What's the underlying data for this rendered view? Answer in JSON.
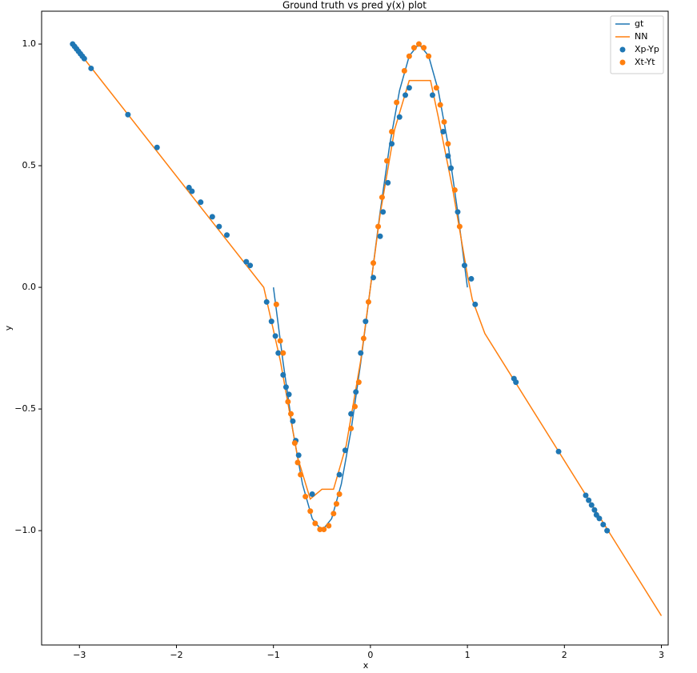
{
  "chart_data": {
    "type": "line",
    "title": "Ground truth vs pred y(x) plot",
    "x_label": "x",
    "y_label": "y",
    "xlim": [
      -3.39,
      3.07
    ],
    "ylim": [
      -1.47,
      1.135
    ],
    "xticks": [
      {
        "value": -3,
        "label": "−3"
      },
      {
        "value": -2,
        "label": "−2"
      },
      {
        "value": -1,
        "label": "−1"
      },
      0,
      1,
      2,
      3
    ],
    "yticks": [
      {
        "value": -1.0,
        "label": "−1.0"
      },
      {
        "value": -0.5,
        "label": "−0.5"
      },
      {
        "value": 0.0,
        "label": "0.0"
      },
      0.5,
      {
        "value": 1.0,
        "label": "1.0"
      }
    ],
    "legend": "upper right",
    "series": [
      {
        "name": "gt",
        "type": "line",
        "color": "#1f77b4",
        "x": [
          -1,
          -0.9,
          -0.8,
          -0.7,
          -0.6,
          -0.5,
          -0.4,
          -0.3,
          -0.2,
          -0.1,
          0,
          0.1,
          0.2,
          0.3,
          0.4,
          0.5,
          0.6,
          0.7,
          0.8,
          0.9,
          1
        ],
        "values": [
          0,
          -0.309,
          -0.588,
          -0.809,
          -0.951,
          -1,
          -0.951,
          -0.809,
          -0.588,
          -0.309,
          0,
          0.309,
          0.588,
          0.809,
          0.951,
          1,
          0.951,
          0.809,
          0.588,
          0.309,
          0
        ]
      },
      {
        "name": "NN",
        "type": "line",
        "color": "#ff7f0e",
        "x": [
          -3.07,
          -1.1,
          -0.93,
          -0.75,
          -0.62,
          -0.5,
          -0.38,
          -0.25,
          -0.1,
          0,
          0.1,
          0.25,
          0.4,
          0.62,
          0.7,
          0.85,
          1.0,
          1.05,
          1.18,
          3.0
        ],
        "values": [
          1.0,
          0.0,
          -0.3,
          -0.7,
          -0.87,
          -0.83,
          -0.83,
          -0.65,
          -0.3,
          0.0,
          0.3,
          0.65,
          0.85,
          0.85,
          0.7,
          0.4,
          0.05,
          -0.05,
          -0.19,
          -1.35
        ]
      },
      {
        "name": "Xp-Yp",
        "type": "scatter",
        "color": "#1f77b4",
        "x": [
          -3.07,
          -3.05,
          -3.03,
          -3.01,
          -2.99,
          -2.97,
          -2.95,
          -2.88,
          -2.5,
          -2.2,
          -1.87,
          -1.84,
          -1.75,
          -1.63,
          -1.56,
          -1.48,
          -1.28,
          -1.24,
          -1.07,
          -1.02,
          -0.98,
          -0.95,
          -0.9,
          -0.87,
          -0.84,
          -0.8,
          -0.77,
          -0.74,
          -0.6,
          -0.32,
          -0.26,
          -0.2,
          -0.15,
          -0.1,
          -0.05,
          0.03,
          0.1,
          0.13,
          0.18,
          0.22,
          0.3,
          0.36,
          0.4,
          0.64,
          0.75,
          0.8,
          0.83,
          0.9,
          0.97,
          1.04,
          1.08,
          1.48,
          1.5,
          1.94,
          2.22,
          2.25,
          2.28,
          2.31,
          2.33,
          2.36,
          2.4,
          2.44
        ],
        "values": [
          1.0,
          0.99,
          0.98,
          0.97,
          0.96,
          0.95,
          0.94,
          0.9,
          0.71,
          0.575,
          0.41,
          0.395,
          0.35,
          0.29,
          0.25,
          0.215,
          0.105,
          0.09,
          -0.06,
          -0.14,
          -0.2,
          -0.27,
          -0.36,
          -0.41,
          -0.44,
          -0.55,
          -0.63,
          -0.69,
          -0.85,
          -0.77,
          -0.67,
          -0.52,
          -0.43,
          -0.27,
          -0.14,
          0.04,
          0.21,
          0.31,
          0.43,
          0.59,
          0.7,
          0.79,
          0.82,
          0.79,
          0.64,
          0.54,
          0.49,
          0.31,
          0.09,
          0.035,
          -0.07,
          -0.375,
          -0.39,
          -0.675,
          -0.855,
          -0.875,
          -0.895,
          -0.915,
          -0.935,
          -0.95,
          -0.975,
          -1.0
        ]
      },
      {
        "name": "Xt-Yt",
        "type": "scatter",
        "color": "#ff7f0e",
        "x": [
          -0.97,
          -0.93,
          -0.9,
          -0.85,
          -0.82,
          -0.78,
          -0.75,
          -0.72,
          -0.67,
          -0.62,
          -0.57,
          -0.52,
          -0.48,
          -0.43,
          -0.38,
          -0.35,
          -0.32,
          -0.2,
          -0.16,
          -0.12,
          -0.07,
          -0.02,
          0.03,
          0.08,
          0.12,
          0.17,
          0.22,
          0.27,
          0.35,
          0.4,
          0.45,
          0.5,
          0.55,
          0.6,
          0.68,
          0.72,
          0.76,
          0.8,
          0.87,
          0.92
        ],
        "values": [
          -0.07,
          -0.22,
          -0.27,
          -0.47,
          -0.52,
          -0.64,
          -0.72,
          -0.77,
          -0.86,
          -0.92,
          -0.97,
          -0.995,
          -0.995,
          -0.98,
          -0.93,
          -0.89,
          -0.85,
          -0.58,
          -0.49,
          -0.39,
          -0.21,
          -0.06,
          0.1,
          0.25,
          0.37,
          0.52,
          0.64,
          0.76,
          0.89,
          0.95,
          0.985,
          1.0,
          0.985,
          0.95,
          0.82,
          0.75,
          0.68,
          0.59,
          0.4,
          0.25
        ]
      }
    ]
  }
}
